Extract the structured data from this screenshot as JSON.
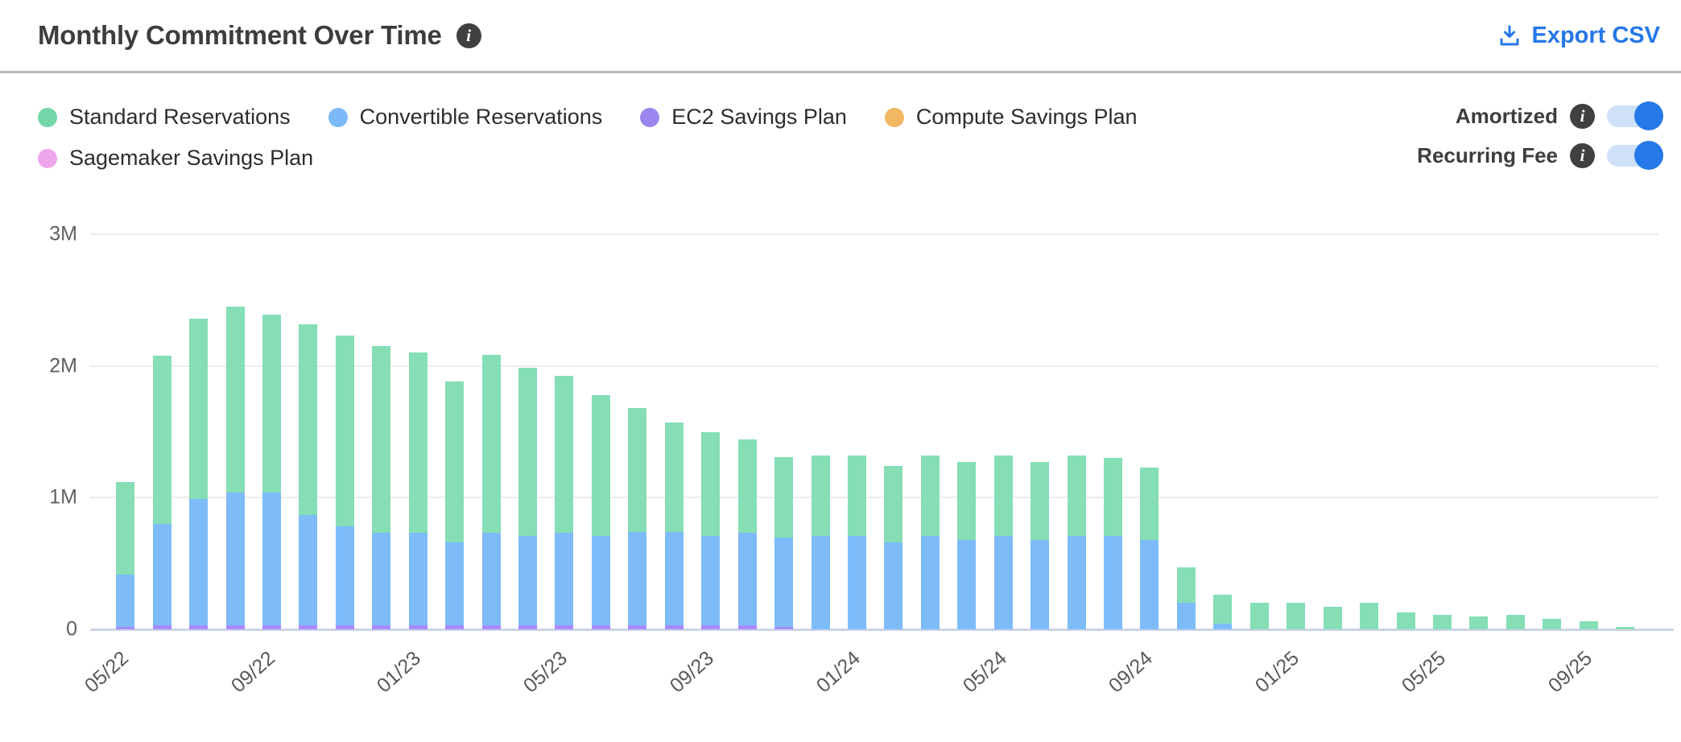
{
  "header": {
    "title": "Monthly Commitment Over Time",
    "export_label": "Export CSV"
  },
  "legend": {
    "items": [
      {
        "key": "standard",
        "label": "Standard Reservations",
        "dot_color": "#74d6a9",
        "bar_color": "#85deb5"
      },
      {
        "key": "convertible",
        "label": "Convertible Reservations",
        "dot_color": "#7db9f8",
        "bar_color": "#7dbbf9"
      },
      {
        "key": "ec2_sp",
        "label": "EC2 Savings Plan",
        "dot_color": "#9b86ef",
        "bar_color": "#a78bfa"
      },
      {
        "key": "compute_sp",
        "label": "Compute Savings Plan",
        "dot_color": "#f2b763",
        "bar_color": "#f5c06e"
      },
      {
        "key": "sagemaker_sp",
        "label": "Sagemaker Savings Plan",
        "dot_color": "#eda6ea",
        "bar_color": "#f0abec"
      }
    ]
  },
  "toggles": [
    {
      "label": "Amortized",
      "state": "on"
    },
    {
      "label": "Recurring Fee",
      "state": "on"
    }
  ],
  "colors": {
    "accent_blue": "#2577e8",
    "toggle_knob": "#2478e8",
    "toggle_track": "#cfe1f8",
    "info_icon_bg": "#3f4042",
    "divider": "#b8b8b8",
    "gridline": "#ececec",
    "baseline": "#ccd3ea",
    "title_text": "#3d3d3d",
    "legend_text": "#2d2d2d",
    "axis_text": "#5f6063"
  },
  "chart_data": {
    "type": "bar",
    "stacked": true,
    "title": "Monthly Commitment Over Time",
    "unit": "USD, values in millions per month",
    "grid": "horizontal",
    "legend_position": "top-left",
    "ylim_millions": [
      0,
      3
    ],
    "y_ticks": [
      "3M",
      "2M",
      "1M",
      "0"
    ],
    "months": [
      "05/22",
      "06/22",
      "07/22",
      "08/22",
      "09/22",
      "10/22",
      "11/22",
      "12/22",
      "01/23",
      "02/23",
      "03/23",
      "04/23",
      "05/23",
      "06/23",
      "07/23",
      "08/23",
      "09/23",
      "10/23",
      "11/23",
      "12/23",
      "01/24",
      "02/24",
      "03/24",
      "04/24",
      "05/24",
      "06/24",
      "07/24",
      "08/24",
      "09/24",
      "10/24",
      "11/24",
      "12/24",
      "01/25",
      "02/25",
      "03/25",
      "04/25",
      "05/25",
      "06/25",
      "07/25",
      "08/25",
      "09/25",
      "10/25"
    ],
    "x_tick_labels": [
      "05/22",
      "09/22",
      "01/23",
      "05/23",
      "09/23",
      "01/24",
      "05/24",
      "09/24",
      "01/25",
      "05/25",
      "09/25"
    ],
    "x_tick_every": 4,
    "stack_order_bottom_to_top": [
      "ec2_sp",
      "convertible",
      "standard"
    ],
    "series": [
      {
        "key": "standard",
        "name": "Standard Reservations",
        "values": [
          0.7,
          1.28,
          1.37,
          1.41,
          1.35,
          1.45,
          1.45,
          1.42,
          1.37,
          1.22,
          1.35,
          1.28,
          1.19,
          1.07,
          0.94,
          0.83,
          0.79,
          0.71,
          0.61,
          0.61,
          0.61,
          0.58,
          0.61,
          0.59,
          0.61,
          0.59,
          0.61,
          0.59,
          0.55,
          0.27,
          0.22,
          0.2,
          0.2,
          0.17,
          0.2,
          0.13,
          0.11,
          0.1,
          0.11,
          0.08,
          0.06,
          0.02
        ]
      },
      {
        "key": "convertible",
        "name": "Convertible Reservations",
        "values": [
          0.4,
          0.77,
          0.96,
          1.01,
          1.01,
          0.84,
          0.75,
          0.7,
          0.7,
          0.63,
          0.7,
          0.68,
          0.7,
          0.68,
          0.71,
          0.71,
          0.68,
          0.7,
          0.68,
          0.71,
          0.71,
          0.66,
          0.71,
          0.68,
          0.71,
          0.68,
          0.71,
          0.71,
          0.68,
          0.2,
          0.04,
          0,
          0,
          0,
          0,
          0,
          0,
          0,
          0,
          0,
          0,
          0
        ]
      },
      {
        "key": "ec2_sp",
        "name": "EC2 Savings Plan",
        "values": [
          0.02,
          0.03,
          0.03,
          0.03,
          0.03,
          0.03,
          0.03,
          0.03,
          0.03,
          0.03,
          0.03,
          0.03,
          0.03,
          0.03,
          0.03,
          0.03,
          0.03,
          0.03,
          0.02,
          0,
          0,
          0,
          0,
          0,
          0,
          0,
          0,
          0,
          0,
          0,
          0,
          0,
          0,
          0,
          0,
          0,
          0,
          0,
          0,
          0,
          0,
          0
        ]
      },
      {
        "key": "compute_sp",
        "name": "Compute Savings Plan",
        "values": [
          0,
          0,
          0,
          0,
          0,
          0,
          0,
          0,
          0,
          0,
          0,
          0,
          0,
          0,
          0,
          0,
          0,
          0,
          0,
          0,
          0,
          0,
          0,
          0,
          0,
          0,
          0,
          0,
          0,
          0,
          0,
          0,
          0,
          0,
          0,
          0,
          0,
          0,
          0,
          0,
          0,
          0
        ]
      },
      {
        "key": "sagemaker_sp",
        "name": "Sagemaker Savings Plan",
        "values": [
          0,
          0,
          0,
          0,
          0,
          0,
          0,
          0,
          0,
          0,
          0,
          0,
          0,
          0,
          0,
          0,
          0,
          0,
          0,
          0,
          0,
          0,
          0,
          0,
          0,
          0,
          0,
          0,
          0,
          0,
          0,
          0,
          0,
          0,
          0,
          0,
          0,
          0,
          0,
          0,
          0,
          0
        ]
      }
    ]
  }
}
